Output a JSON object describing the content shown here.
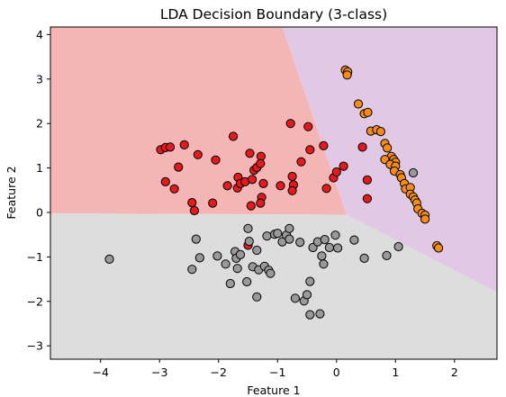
{
  "chart_data": {
    "type": "scatter",
    "title": "LDA Decision Boundary (3-class)",
    "xlabel": "Feature 1",
    "ylabel": "Feature 2",
    "xlim": [
      -4.85,
      2.72
    ],
    "ylim": [
      -3.3,
      4.17
    ],
    "xticks": [
      -4,
      -3,
      -2,
      -1,
      0,
      1,
      2
    ],
    "yticks": [
      -3,
      -2,
      -1,
      0,
      1,
      2,
      3,
      4
    ],
    "grid": false,
    "legend": "none",
    "regions": [
      {
        "class": "red",
        "color": "#f4b6b5",
        "polygon": [
          [
            -4.85,
            -0.02
          ],
          [
            0.17,
            -0.05
          ],
          [
            -0.92,
            4.17
          ],
          [
            -4.85,
            4.17
          ]
        ]
      },
      {
        "class": "purple",
        "color": "#e1c8e4",
        "polygon": [
          [
            0.17,
            -0.05
          ],
          [
            2.72,
            -1.8
          ],
          [
            2.72,
            4.17
          ],
          [
            -0.92,
            4.17
          ]
        ]
      },
      {
        "class": "gray",
        "color": "#dddddd",
        "polygon": [
          [
            -4.85,
            -0.02
          ],
          [
            0.17,
            -0.05
          ],
          [
            2.72,
            -1.8
          ],
          [
            2.72,
            -3.3
          ],
          [
            -4.85,
            -3.3
          ]
        ]
      }
    ],
    "series": [
      {
        "color": "#e41a1c",
        "points": [
          [
            -2.98,
            1.41
          ],
          [
            -2.9,
            1.46
          ],
          [
            -2.82,
            1.47
          ],
          [
            -2.58,
            1.52
          ],
          [
            -2.35,
            1.3
          ],
          [
            -2.05,
            1.18
          ],
          [
            -2.68,
            1.02
          ],
          [
            -2.9,
            0.69
          ],
          [
            -2.75,
            0.53
          ],
          [
            -2.45,
            0.22
          ],
          [
            -2.41,
            0.04
          ],
          [
            -2.1,
            0.21
          ],
          [
            -1.75,
            1.71
          ],
          [
            -1.85,
            0.6
          ],
          [
            -1.67,
            0.79
          ],
          [
            -1.68,
            0.55
          ],
          [
            -1.63,
            0.65
          ],
          [
            -1.55,
            0.69
          ],
          [
            -1.47,
            1.33
          ],
          [
            -1.4,
            0.95
          ],
          [
            -1.35,
            1.01
          ],
          [
            -1.28,
            1.26
          ],
          [
            -1.29,
            1.1
          ],
          [
            -1.43,
            0.74
          ],
          [
            -1.24,
            0.65
          ],
          [
            -1.27,
            0.34
          ],
          [
            -1.29,
            0.21
          ],
          [
            -1.45,
            0.15
          ],
          [
            -0.95,
            0.6
          ],
          [
            -0.78,
            2.0
          ],
          [
            -0.75,
            0.81
          ],
          [
            -0.73,
            0.62
          ],
          [
            -0.75,
            0.49
          ],
          [
            -0.6,
            1.14
          ],
          [
            -0.48,
            1.93
          ],
          [
            -0.45,
            1.41
          ],
          [
            -0.22,
            1.5
          ],
          [
            -0.17,
            0.54
          ],
          [
            -0.05,
            0.78
          ],
          [
            0.0,
            0.91
          ],
          [
            0.12,
            1.04
          ],
          [
            0.44,
            1.47
          ],
          [
            0.52,
            0.73
          ],
          [
            0.52,
            0.31
          ],
          [
            -1.5,
            -0.74
          ]
        ]
      },
      {
        "color": "#f58b18",
        "points": [
          [
            0.15,
            3.2
          ],
          [
            0.19,
            3.16
          ],
          [
            0.18,
            3.09
          ],
          [
            0.37,
            2.44
          ],
          [
            0.47,
            2.22
          ],
          [
            0.53,
            2.25
          ],
          [
            0.58,
            1.83
          ],
          [
            0.68,
            1.86
          ],
          [
            0.75,
            1.82
          ],
          [
            0.82,
            1.55
          ],
          [
            0.86,
            1.45
          ],
          [
            0.93,
            1.26
          ],
          [
            0.97,
            1.19
          ],
          [
            1.0,
            1.13
          ],
          [
            0.82,
            1.19
          ],
          [
            0.91,
            1.08
          ],
          [
            1.0,
            1.04
          ],
          [
            0.98,
            0.93
          ],
          [
            1.08,
            0.85
          ],
          [
            1.1,
            0.78
          ],
          [
            1.15,
            0.65
          ],
          [
            1.17,
            0.53
          ],
          [
            1.25,
            0.56
          ],
          [
            1.25,
            0.41
          ],
          [
            1.3,
            0.35
          ],
          [
            1.33,
            0.28
          ],
          [
            1.36,
            0.21
          ],
          [
            1.38,
            0.08
          ],
          [
            1.45,
            -0.02
          ],
          [
            1.5,
            -0.06
          ],
          [
            1.5,
            -0.15
          ],
          [
            1.7,
            -0.75
          ],
          [
            1.73,
            -0.8
          ]
        ]
      },
      {
        "color": "#999999",
        "points": [
          [
            -3.85,
            -1.05
          ],
          [
            -2.38,
            -0.6
          ],
          [
            -2.32,
            -1.02
          ],
          [
            -2.45,
            -1.28
          ],
          [
            -2.02,
            -0.98
          ],
          [
            -1.88,
            -1.16
          ],
          [
            -1.8,
            -1.6
          ],
          [
            -1.72,
            -0.88
          ],
          [
            -1.7,
            -1.03
          ],
          [
            -1.63,
            -0.95
          ],
          [
            -1.68,
            -1.26
          ],
          [
            -1.5,
            -0.36
          ],
          [
            -1.48,
            -0.65
          ],
          [
            -1.52,
            -1.56
          ],
          [
            -1.42,
            -1.22
          ],
          [
            -1.35,
            -0.85
          ],
          [
            -1.32,
            -1.29
          ],
          [
            -1.35,
            -1.9
          ],
          [
            -1.22,
            -1.21
          ],
          [
            -1.18,
            -0.53
          ],
          [
            -1.15,
            -1.3
          ],
          [
            -1.12,
            -1.37
          ],
          [
            -1.05,
            -0.49
          ],
          [
            -1.0,
            -0.47
          ],
          [
            -0.92,
            -0.66
          ],
          [
            -0.85,
            -0.51
          ],
          [
            -0.8,
            -0.36
          ],
          [
            -0.8,
            -0.6
          ],
          [
            -0.7,
            -1.93
          ],
          [
            -0.62,
            -0.67
          ],
          [
            -0.55,
            -1.99
          ],
          [
            -0.5,
            -1.85
          ],
          [
            -0.45,
            -1.55
          ],
          [
            -0.4,
            -0.79
          ],
          [
            -0.32,
            -0.66
          ],
          [
            -0.25,
            -0.98
          ],
          [
            -0.22,
            -1.16
          ],
          [
            -0.2,
            -0.61
          ],
          [
            -0.12,
            -0.79
          ],
          [
            -0.02,
            -0.51
          ],
          [
            0.02,
            -0.8
          ],
          [
            -0.45,
            -2.3
          ],
          [
            -0.28,
            -2.28
          ],
          [
            0.3,
            -0.62
          ],
          [
            0.47,
            -1.03
          ],
          [
            0.85,
            -0.97
          ],
          [
            1.05,
            -0.77
          ],
          [
            1.3,
            0.89
          ]
        ]
      }
    ]
  }
}
